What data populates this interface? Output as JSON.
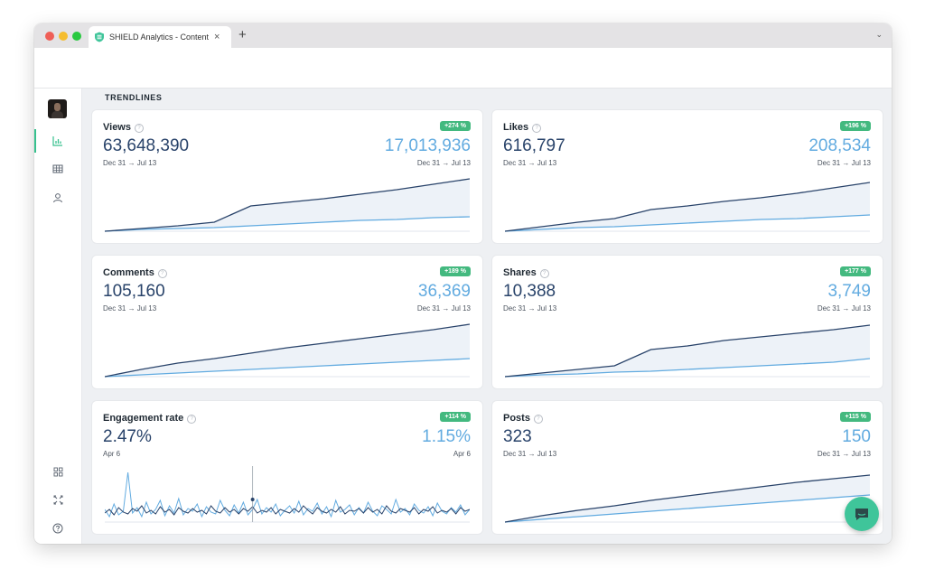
{
  "browser": {
    "tab_title": "SHIELD Analytics - Content Ov",
    "close_glyph": "×",
    "new_tab_glyph": "+",
    "tabs_menu_glyph": "⌄",
    "traffic_lights": [
      "#ef5f57",
      "#f5bd2f",
      "#29c940"
    ]
  },
  "sidebar": {
    "items": [
      {
        "icon": "avatar",
        "active": false
      },
      {
        "icon": "bar-chart-icon",
        "active": true
      },
      {
        "icon": "table-icon",
        "active": false
      },
      {
        "icon": "user-icon",
        "active": false
      }
    ],
    "bottom_items": [
      {
        "icon": "grid-icon"
      },
      {
        "icon": "expand-icon"
      },
      {
        "icon": "help-icon"
      }
    ]
  },
  "main": {
    "section_title": "TRENDLINES",
    "help_glyph": "?"
  },
  "colors": {
    "current": "#29436a",
    "previous": "#62abe0",
    "badge": "#43b97f",
    "fill": "#edf2f8",
    "accent": "#37c18e"
  },
  "cards": [
    {
      "title": "Views",
      "badge": "+274 %",
      "value": "63,648,390",
      "prev_value": "17,013,936",
      "date_left": "Dec 31 → Jul 13",
      "date_right": "Dec 31 → Jul 13",
      "chart_data": {
        "type": "line",
        "x": [
          0,
          1,
          2,
          3,
          4,
          5,
          6,
          7,
          8,
          9,
          10
        ],
        "series": [
          {
            "values": [
              0,
              3,
              6,
              10,
              28,
              32,
              36,
              41,
              46,
              52,
              58
            ]
          },
          {
            "values": [
              0,
              2,
              3,
              4,
              6,
              8,
              10,
              12,
              13,
              15,
              16
            ]
          }
        ],
        "ylim": [
          0,
          60
        ]
      }
    },
    {
      "title": "Likes",
      "badge": "+196 %",
      "value": "616,797",
      "prev_value": "208,534",
      "date_left": "Dec 31 → Jul 13",
      "date_right": "Dec 31 → Jul 13",
      "chart_data": {
        "type": "line",
        "x": [
          0,
          1,
          2,
          3,
          4,
          5,
          6,
          7,
          8,
          9,
          10
        ],
        "series": [
          {
            "values": [
              0,
              5,
              10,
              14,
              24,
              28,
              33,
              37,
              42,
              48,
              54
            ]
          },
          {
            "values": [
              0,
              2,
              4,
              5,
              7,
              9,
              11,
              13,
              14,
              16,
              18
            ]
          }
        ],
        "ylim": [
          0,
          60
        ]
      }
    },
    {
      "title": "Comments",
      "badge": "+189 %",
      "value": "105,160",
      "prev_value": "36,369",
      "date_left": "Dec 31 → Jul 13",
      "date_right": "Dec 31 → Jul 13",
      "chart_data": {
        "type": "line",
        "x": [
          0,
          1,
          2,
          3,
          4,
          5,
          6,
          7,
          8,
          9,
          10
        ],
        "series": [
          {
            "values": [
              0,
              8,
              15,
              20,
              26,
              32,
              37,
              42,
              47,
              52,
              58
            ]
          },
          {
            "values": [
              0,
              2,
              4,
              6,
              8,
              10,
              12,
              14,
              16,
              18,
              20
            ]
          }
        ],
        "ylim": [
          0,
          60
        ]
      }
    },
    {
      "title": "Shares",
      "badge": "+177 %",
      "value": "10,388",
      "prev_value": "3,749",
      "date_left": "Dec 31 → Jul 13",
      "date_right": "Dec 31 → Jul 13",
      "chart_data": {
        "type": "line",
        "x": [
          0,
          1,
          2,
          3,
          4,
          5,
          6,
          7,
          8,
          9,
          10
        ],
        "series": [
          {
            "values": [
              0,
              4,
              8,
              12,
              30,
              34,
              40,
              44,
              48,
              52,
              57
            ]
          },
          {
            "values": [
              0,
              2,
              3,
              5,
              6,
              8,
              10,
              12,
              14,
              16,
              20
            ]
          }
        ],
        "ylim": [
          0,
          60
        ]
      }
    },
    {
      "title": "Engagement rate",
      "badge": "+114 %",
      "value": "2.47%",
      "prev_value": "1.15%",
      "date_left": "Apr 6",
      "date_right": "Apr 6",
      "chart_data": {
        "type": "line",
        "x": [
          0,
          1,
          2,
          3,
          4,
          5,
          6,
          7,
          8,
          9,
          10,
          11,
          12,
          13,
          14,
          15,
          16,
          17,
          18,
          19,
          20,
          21,
          22,
          23,
          24,
          25,
          26,
          27,
          28,
          29,
          30,
          31,
          32,
          33,
          34,
          35,
          36,
          37,
          38,
          39,
          40,
          41,
          42,
          43,
          44,
          45,
          46,
          47,
          48,
          49,
          50,
          51,
          52,
          53,
          54,
          55,
          56,
          57,
          58,
          59,
          60,
          61,
          62,
          63,
          64,
          65,
          66,
          67,
          68,
          69,
          70,
          71,
          72,
          73,
          74,
          75,
          76,
          77,
          78,
          79
        ],
        "series": [
          {
            "values": [
              10,
              14,
              8,
              16,
              11,
              9,
              15,
              12,
              18,
              10,
              13,
              9,
              17,
              11,
              14,
              8,
              16,
              12,
              10,
              15,
              11,
              13,
              9,
              18,
              12,
              10,
              16,
              11,
              14,
              9,
              15,
              12,
              17,
              10,
              13,
              11,
              16,
              9,
              14,
              12,
              10,
              15,
              11,
              18,
              13,
              9,
              16,
              12,
              10,
              14,
              11,
              17,
              9,
              13,
              12,
              15,
              10,
              16,
              11,
              14,
              9,
              18,
              12,
              10,
              15,
              13,
              11,
              16,
              9,
              14,
              12,
              17,
              10,
              13,
              11,
              15,
              9,
              16,
              12,
              14
            ]
          },
          {
            "values": [
              14,
              6,
              20,
              8,
              12,
              55,
              10,
              16,
              6,
              22,
              9,
              14,
              24,
              7,
              18,
              10,
              26,
              8,
              15,
              12,
              20,
              6,
              17,
              11,
              9,
              24,
              13,
              7,
              19,
              10,
              22,
              8,
              14,
              25,
              9,
              16,
              11,
              20,
              7,
              13,
              18,
              10,
              23,
              8,
              15,
              12,
              21,
              9,
              17,
              6,
              24,
              11,
              14,
              19,
              8,
              16,
              10,
              22,
              12,
              7,
              18,
              14,
              9,
              25,
              11,
              15,
              8,
              20,
              13,
              10,
              17,
              7,
              21,
              12,
              9,
              16,
              11,
              19,
              8,
              14
            ]
          }
        ],
        "ylim": [
          0,
          60
        ]
      }
    },
    {
      "title": "Posts",
      "badge": "+115 %",
      "value": "323",
      "prev_value": "150",
      "date_left": "Dec 31 → Jul 13",
      "date_right": "Dec 31 → Jul 13",
      "chart_data": {
        "type": "line",
        "x": [
          0,
          1,
          2,
          3,
          4,
          5,
          6,
          7,
          8,
          9,
          10
        ],
        "series": [
          {
            "values": [
              0,
              7,
              13,
              18,
              24,
              29,
              34,
              39,
              44,
              48,
              52
            ]
          },
          {
            "values": [
              0,
              3,
              6,
              9,
              12,
              15,
              18,
              21,
              24,
              27,
              30
            ]
          }
        ],
        "ylim": [
          0,
          60
        ]
      }
    }
  ]
}
